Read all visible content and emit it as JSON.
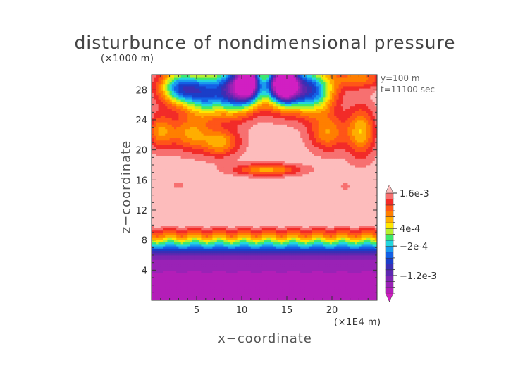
{
  "chart_data": {
    "type": "heatmap",
    "title": "disturbunce of nondimensional pressure",
    "y_unit": "(×1000 m)",
    "x_unit": "(×1E4 m)",
    "xlabel": "x−coordinate",
    "ylabel": "z−coordinate",
    "annotations": [
      "y=100 m",
      "t=11100 sec"
    ],
    "xlim": [
      0,
      25
    ],
    "ylim": [
      0,
      30
    ],
    "x_ticks": [
      5,
      10,
      15,
      20
    ],
    "x_tick_labels": [
      "5",
      "10",
      "15",
      "20"
    ],
    "y_ticks": [
      4,
      8,
      12,
      16,
      20,
      24,
      28
    ],
    "y_tick_labels": [
      "4",
      "8",
      "12",
      "16",
      "20",
      "24",
      "28"
    ],
    "colorbar": {
      "levels": [
        -0.0018,
        -0.0016,
        -0.0014,
        -0.0012,
        -0.001,
        -0.0008,
        -0.0006,
        -0.0004,
        -0.0002,
        0,
        0.0002,
        0.0004,
        0.0006,
        0.0008,
        0.001,
        0.0012,
        0.0014,
        0.0016
      ],
      "colors": [
        "#d11fc2",
        "#b31eb8",
        "#9a22b6",
        "#7e25b2",
        "#5d28b0",
        "#3b2eb4",
        "#1b3ec8",
        "#1460e6",
        "#1a9bee",
        "#23d6de",
        "#3de86e",
        "#b7ef2e",
        "#ffe600",
        "#ffae00",
        "#ff7f00",
        "#ff5518",
        "#f22b28",
        "#f77070",
        "#fdbcbc"
      ],
      "tick_values": [
        0.0016,
        0.0004,
        -0.0002,
        -0.0012
      ],
      "tick_labels": [
        "1.6e-3",
        "4e-4",
        "−2e-4",
        "−1.2e-3"
      ]
    }
  }
}
